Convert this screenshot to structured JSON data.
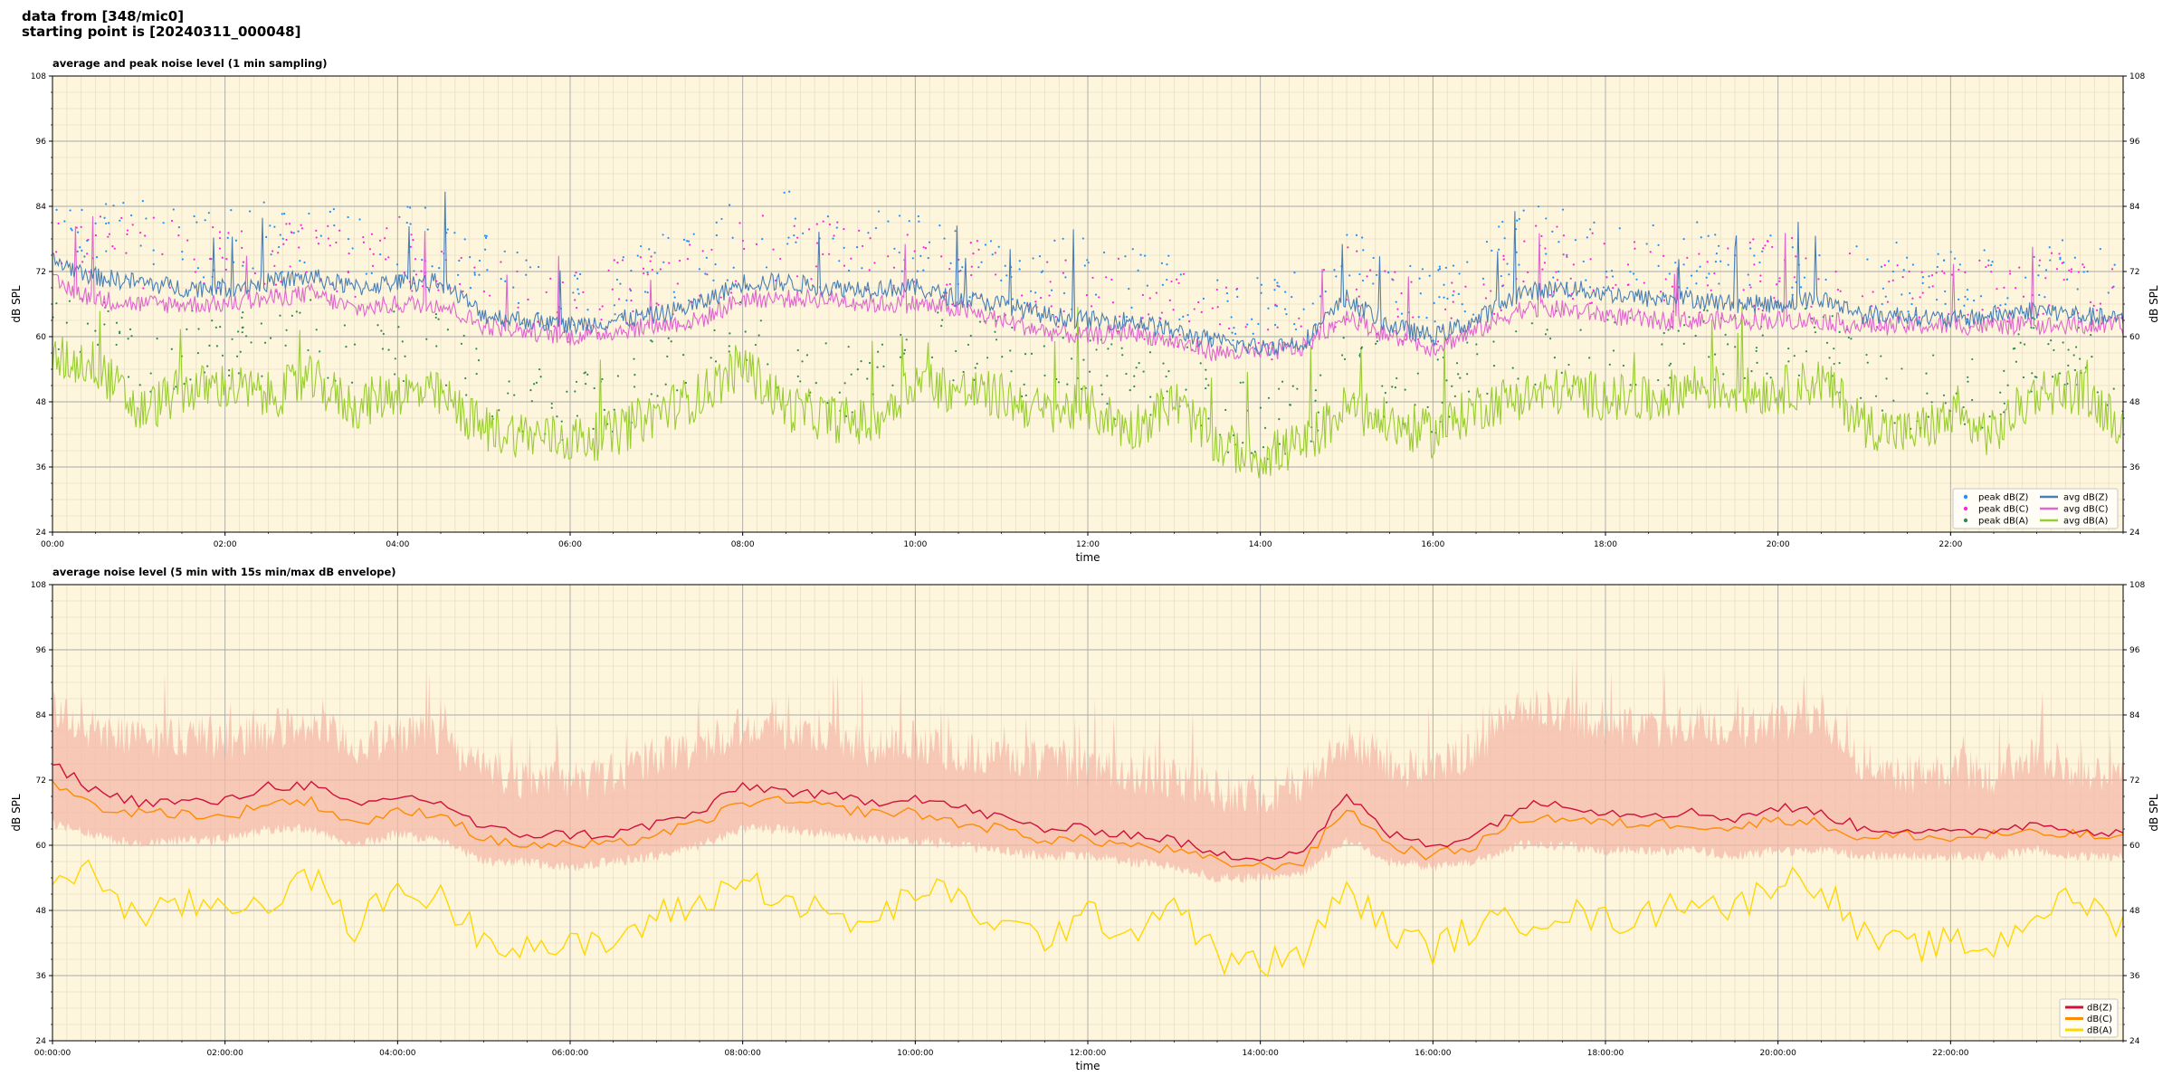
{
  "header": {
    "line1": "data from [348/mic0]",
    "line2": "starting point is [20240311_000048]"
  },
  "colors": {
    "background": "#fdf5dc",
    "grid_major": "#a9a9a9",
    "grid_minor": "#e3d9bd",
    "z_avg": "#4a7fb5",
    "c_avg": "#e066cf",
    "a_avg": "#9acd32",
    "z_peak": "#1e90ff",
    "c_peak": "#ff22dd",
    "a_peak": "#2e8b57",
    "z_5min": "#d0103a",
    "c_5min": "#ff8c00",
    "a_5min": "#ffd700",
    "envelope": "#f4b8a8"
  },
  "chart_data": [
    {
      "type": "line",
      "title": "average and peak noise level (1 min sampling)",
      "xlabel": "time",
      "ylabel": "dB SPL",
      "xlim": [
        0,
        24
      ],
      "ylim": [
        24,
        108
      ],
      "yticks": [
        "24",
        "36",
        "48",
        "60",
        "72",
        "84",
        "96",
        "108"
      ],
      "xticks": [
        "00:00",
        "02:00",
        "04:00",
        "06:00",
        "08:00",
        "10:00",
        "12:00",
        "14:00",
        "16:00",
        "18:00",
        "20:00",
        "22:00"
      ],
      "grid": true,
      "legend_position": "bottom-right",
      "x": [
        0,
        0.5,
        1,
        1.5,
        2,
        2.5,
        3,
        3.5,
        4,
        4.5,
        5,
        5.5,
        6,
        6.5,
        7,
        7.5,
        8,
        8.5,
        9,
        9.5,
        10,
        10.5,
        11,
        11.5,
        12,
        12.5,
        13,
        13.5,
        14,
        14.5,
        15,
        15.5,
        16,
        16.5,
        17,
        17.5,
        18,
        18.5,
        19,
        19.5,
        20,
        20.5,
        21,
        21.5,
        22,
        22.5,
        23,
        23.5,
        24
      ],
      "series": [
        {
          "name": "avg dB(Z)",
          "kind": "line",
          "values": [
            74,
            71,
            70,
            69,
            69,
            70,
            71,
            69,
            70,
            70,
            64,
            63,
            62,
            63,
            64,
            66,
            70,
            70,
            69,
            69,
            69,
            67,
            66,
            64,
            63,
            63,
            61,
            59,
            58,
            59,
            67,
            62,
            60,
            63,
            68,
            69,
            68,
            67,
            67,
            66,
            66,
            67,
            64,
            64,
            63,
            64,
            65,
            64,
            63
          ]
        },
        {
          "name": "avg dB(C)",
          "kind": "line",
          "values": [
            70,
            67,
            66,
            66,
            66,
            67,
            68,
            65,
            66,
            66,
            62,
            61,
            60,
            61,
            62,
            63,
            67,
            67,
            67,
            66,
            66,
            65,
            63,
            61,
            60,
            61,
            59,
            57,
            57,
            58,
            64,
            60,
            58,
            61,
            65,
            65,
            64,
            63,
            63,
            63,
            63,
            63,
            62,
            62,
            62,
            62,
            62,
            62,
            62
          ]
        },
        {
          "name": "avg dB(A)",
          "kind": "line",
          "values": [
            56,
            55,
            46,
            50,
            51,
            49,
            52,
            47,
            50,
            49,
            43,
            42,
            41,
            42,
            46,
            49,
            55,
            47,
            45,
            44,
            52,
            50,
            49,
            46,
            47,
            43,
            48,
            40,
            38,
            40,
            47,
            44,
            42,
            47,
            49,
            50,
            49,
            48,
            51,
            50,
            50,
            52,
            44,
            42,
            45,
            42,
            50,
            50,
            44
          ]
        },
        {
          "name": "peak dB(Z)",
          "kind": "scatter",
          "values": [
            82,
            78,
            76,
            76,
            75,
            76,
            77,
            75,
            76,
            77,
            70,
            67,
            65,
            67,
            70,
            72,
            77,
            78,
            76,
            75,
            74,
            72,
            71,
            70,
            69,
            68,
            66,
            63,
            62,
            64,
            71,
            66,
            64,
            69,
            75,
            75,
            73,
            72,
            72,
            72,
            72,
            73,
            69,
            68,
            67,
            68,
            71,
            68,
            67
          ]
        },
        {
          "name": "peak dB(C)",
          "kind": "scatter",
          "values": [
            79,
            75,
            73,
            73,
            72,
            73,
            74,
            72,
            73,
            73,
            67,
            65,
            63,
            65,
            67,
            69,
            74,
            75,
            73,
            72,
            71,
            69,
            68,
            67,
            66,
            65,
            63,
            61,
            60,
            62,
            68,
            64,
            62,
            66,
            72,
            72,
            70,
            69,
            69,
            69,
            69,
            70,
            66,
            66,
            65,
            66,
            68,
            66,
            66
          ]
        },
        {
          "name": "peak dB(A)",
          "kind": "scatter",
          "values": [
            62,
            60,
            52,
            56,
            57,
            55,
            58,
            53,
            56,
            55,
            48,
            46,
            44,
            46,
            51,
            54,
            61,
            52,
            50,
            49,
            57,
            55,
            54,
            51,
            52,
            48,
            53,
            44,
            42,
            44,
            53,
            49,
            46,
            52,
            55,
            56,
            55,
            54,
            57,
            56,
            56,
            58,
            49,
            46,
            50,
            46,
            56,
            56,
            49
          ]
        }
      ],
      "legend": [
        "peak dB(Z)",
        "peak dB(C)",
        "peak dB(A)",
        "avg dB(Z)",
        "avg dB(C)",
        "avg dB(A)"
      ]
    },
    {
      "type": "line",
      "title": "average noise level (5 min with 15s min/max dB envelope)",
      "xlabel": "time",
      "ylabel": "dB SPL",
      "xlim": [
        0,
        24
      ],
      "ylim": [
        24,
        108
      ],
      "yticks": [
        "24",
        "36",
        "48",
        "60",
        "72",
        "84",
        "96",
        "108"
      ],
      "xticks": [
        "00:00:00",
        "02:00:00",
        "04:00:00",
        "06:00:00",
        "08:00:00",
        "10:00:00",
        "12:00:00",
        "14:00:00",
        "16:00:00",
        "18:00:00",
        "20:00:00",
        "22:00:00"
      ],
      "grid": true,
      "legend_position": "bottom-right",
      "x": [
        0,
        0.5,
        1,
        1.5,
        2,
        2.5,
        3,
        3.5,
        4,
        4.5,
        5,
        5.5,
        6,
        6.5,
        7,
        7.5,
        8,
        8.5,
        9,
        9.5,
        10,
        10.5,
        11,
        11.5,
        12,
        12.5,
        13,
        13.5,
        14,
        14.5,
        15,
        15.5,
        16,
        16.5,
        17,
        17.5,
        18,
        18.5,
        19,
        19.5,
        20,
        20.5,
        21,
        21.5,
        22,
        22.5,
        23,
        23.5,
        24
      ],
      "series": [
        {
          "name": "dB(Z)",
          "values": [
            75,
            70,
            68,
            68,
            68,
            71,
            71,
            67,
            69,
            68,
            63,
            62,
            62,
            62,
            64,
            66,
            71,
            70,
            69,
            68,
            69,
            67,
            65,
            63,
            63,
            62,
            61,
            58,
            58,
            59,
            69,
            62,
            60,
            62,
            67,
            68,
            66,
            66,
            66,
            65,
            67,
            66,
            63,
            63,
            62,
            63,
            64,
            63,
            62
          ]
        },
        {
          "name": "dB(C)",
          "values": [
            72,
            67,
            66,
            66,
            65,
            68,
            68,
            64,
            66,
            66,
            61,
            60,
            60,
            60,
            62,
            64,
            68,
            68,
            67,
            66,
            66,
            64,
            63,
            61,
            61,
            60,
            59,
            57,
            56,
            57,
            67,
            60,
            58,
            60,
            65,
            65,
            64,
            64,
            64,
            63,
            65,
            64,
            61,
            62,
            61,
            62,
            62,
            62,
            61
          ]
        },
        {
          "name": "dB(A)",
          "values": [
            54,
            55,
            46,
            49,
            49,
            50,
            54,
            45,
            52,
            50,
            43,
            42,
            41,
            42,
            47,
            49,
            54,
            50,
            47,
            45,
            52,
            50,
            45,
            43,
            47,
            44,
            50,
            39,
            38,
            40,
            52,
            44,
            41,
            45,
            46,
            48,
            46,
            47,
            51,
            48,
            54,
            53,
            43,
            41,
            42,
            41,
            48,
            50,
            45
          ]
        }
      ],
      "envelope": {
        "min": [
          64,
          62,
          60,
          61,
          61,
          63,
          63,
          60,
          62,
          61,
          57,
          57,
          56,
          57,
          58,
          60,
          63,
          63,
          62,
          61,
          61,
          60,
          59,
          58,
          58,
          57,
          56,
          54,
          54,
          55,
          61,
          57,
          56,
          57,
          60,
          60,
          59,
          59,
          59,
          58,
          59,
          59,
          58,
          58,
          58,
          58,
          59,
          58,
          58
        ],
        "max": [
          86,
          82,
          80,
          81,
          80,
          82,
          83,
          79,
          81,
          81,
          75,
          73,
          72,
          74,
          77,
          79,
          83,
          82,
          80,
          79,
          80,
          78,
          77,
          76,
          75,
          74,
          73,
          71,
          70,
          72,
          80,
          76,
          74,
          79,
          86,
          85,
          83,
          82,
          83,
          82,
          84,
          84,
          76,
          74,
          75,
          74,
          78,
          74,
          73
        ]
      },
      "legend": [
        "dB(Z)",
        "dB(C)",
        "dB(A)"
      ]
    }
  ]
}
